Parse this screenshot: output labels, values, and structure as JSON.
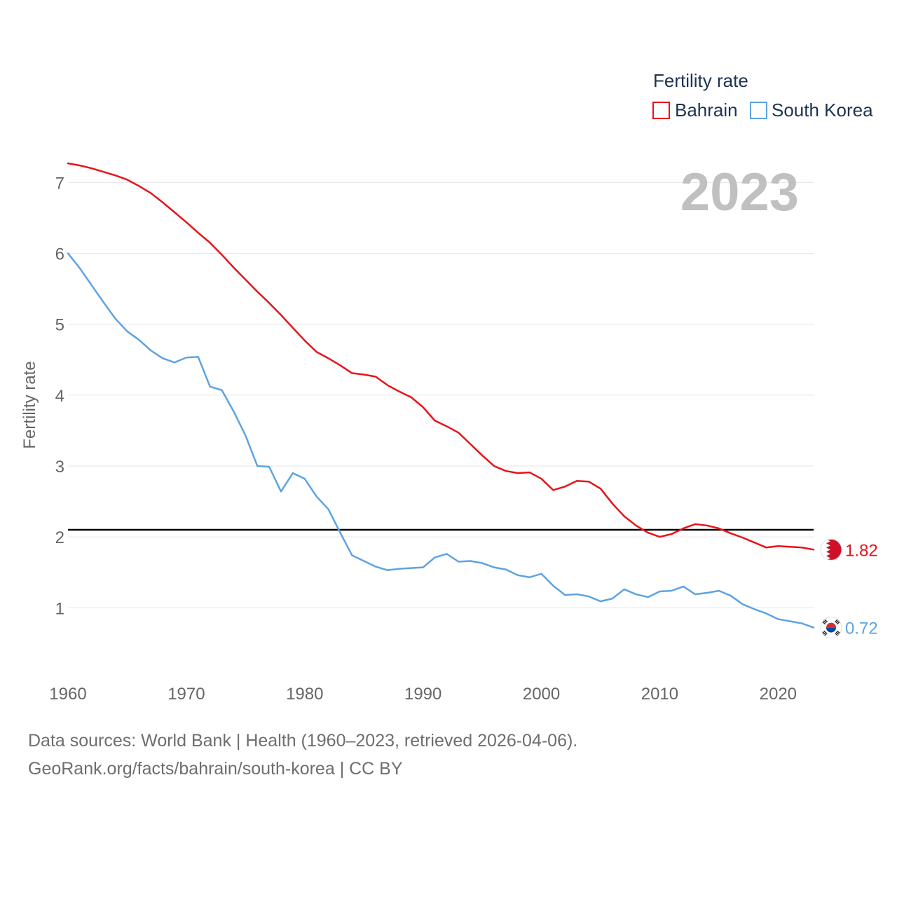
{
  "chart_data": {
    "type": "line",
    "legend": {
      "title": "Fertility rate",
      "position": "top-right"
    },
    "ylabel": "Fertility rate",
    "year_label": "2023",
    "xlim": [
      1960,
      2023
    ],
    "ylim": [
      0.35,
      7.35
    ],
    "x_ticks": [
      1960,
      1970,
      1980,
      1990,
      2000,
      2010,
      2020
    ],
    "y_ticks": [
      1,
      2,
      3,
      4,
      5,
      6,
      7
    ],
    "grid": true,
    "reference_line": {
      "value": 2.1,
      "color": "#000000"
    },
    "series": [
      {
        "name": "Bahrain",
        "color": "#e8131a",
        "end_label": "1.82",
        "flag_icon": "bahrain-flag-icon",
        "x": [
          1960,
          1961,
          1962,
          1963,
          1964,
          1965,
          1966,
          1967,
          1968,
          1969,
          1970,
          1971,
          1972,
          1973,
          1974,
          1975,
          1976,
          1977,
          1978,
          1979,
          1980,
          1981,
          1982,
          1983,
          1984,
          1985,
          1986,
          1987,
          1988,
          1989,
          1990,
          1991,
          1992,
          1993,
          1994,
          1995,
          1996,
          1997,
          1998,
          1999,
          2000,
          2001,
          2002,
          2003,
          2004,
          2005,
          2006,
          2007,
          2008,
          2009,
          2010,
          2011,
          2012,
          2013,
          2014,
          2015,
          2016,
          2017,
          2018,
          2019,
          2020,
          2021,
          2022,
          2023
        ],
        "values": [
          7.27,
          7.24,
          7.2,
          7.15,
          7.1,
          7.04,
          6.95,
          6.85,
          6.72,
          6.58,
          6.44,
          6.29,
          6.15,
          5.98,
          5.8,
          5.63,
          5.46,
          5.3,
          5.13,
          4.95,
          4.77,
          4.61,
          4.52,
          4.42,
          4.31,
          4.29,
          4.26,
          4.14,
          4.05,
          3.97,
          3.83,
          3.64,
          3.56,
          3.47,
          3.31,
          3.15,
          3.0,
          2.93,
          2.9,
          2.91,
          2.82,
          2.66,
          2.71,
          2.79,
          2.78,
          2.68,
          2.47,
          2.29,
          2.16,
          2.06,
          2.0,
          2.04,
          2.12,
          2.18,
          2.16,
          2.12,
          2.05,
          1.99,
          1.92,
          1.85,
          1.87,
          1.86,
          1.85,
          1.82
        ]
      },
      {
        "name": "South Korea",
        "color": "#5da3e3",
        "end_label": "0.72",
        "flag_icon": "south-korea-flag-icon",
        "x": [
          1960,
          1961,
          1962,
          1963,
          1964,
          1965,
          1966,
          1967,
          1968,
          1969,
          1970,
          1971,
          1972,
          1973,
          1974,
          1975,
          1976,
          1977,
          1978,
          1979,
          1980,
          1981,
          1982,
          1983,
          1984,
          1985,
          1986,
          1987,
          1988,
          1989,
          1990,
          1991,
          1992,
          1993,
          1994,
          1995,
          1996,
          1997,
          1998,
          1999,
          2000,
          2001,
          2002,
          2003,
          2004,
          2005,
          2006,
          2007,
          2008,
          2009,
          2010,
          2011,
          2012,
          2013,
          2014,
          2015,
          2016,
          2017,
          2018,
          2019,
          2020,
          2021,
          2022,
          2023
        ],
        "values": [
          6.0,
          5.79,
          5.55,
          5.31,
          5.08,
          4.9,
          4.78,
          4.63,
          4.52,
          4.46,
          4.53,
          4.54,
          4.12,
          4.07,
          3.77,
          3.43,
          3.0,
          2.99,
          2.64,
          2.9,
          2.82,
          2.57,
          2.39,
          2.06,
          1.74,
          1.66,
          1.58,
          1.53,
          1.55,
          1.56,
          1.57,
          1.71,
          1.76,
          1.65,
          1.66,
          1.63,
          1.57,
          1.54,
          1.46,
          1.43,
          1.48,
          1.31,
          1.18,
          1.19,
          1.16,
          1.09,
          1.13,
          1.26,
          1.19,
          1.15,
          1.23,
          1.24,
          1.3,
          1.19,
          1.21,
          1.24,
          1.17,
          1.05,
          0.98,
          0.92,
          0.84,
          0.81,
          0.78,
          0.72
        ]
      }
    ]
  },
  "footer": {
    "source_line": "Data sources: World Bank | Health (1960–2023, retrieved 2026-04-06).",
    "url_line": "GeoRank.org/facts/bahrain/south-korea | CC BY"
  }
}
